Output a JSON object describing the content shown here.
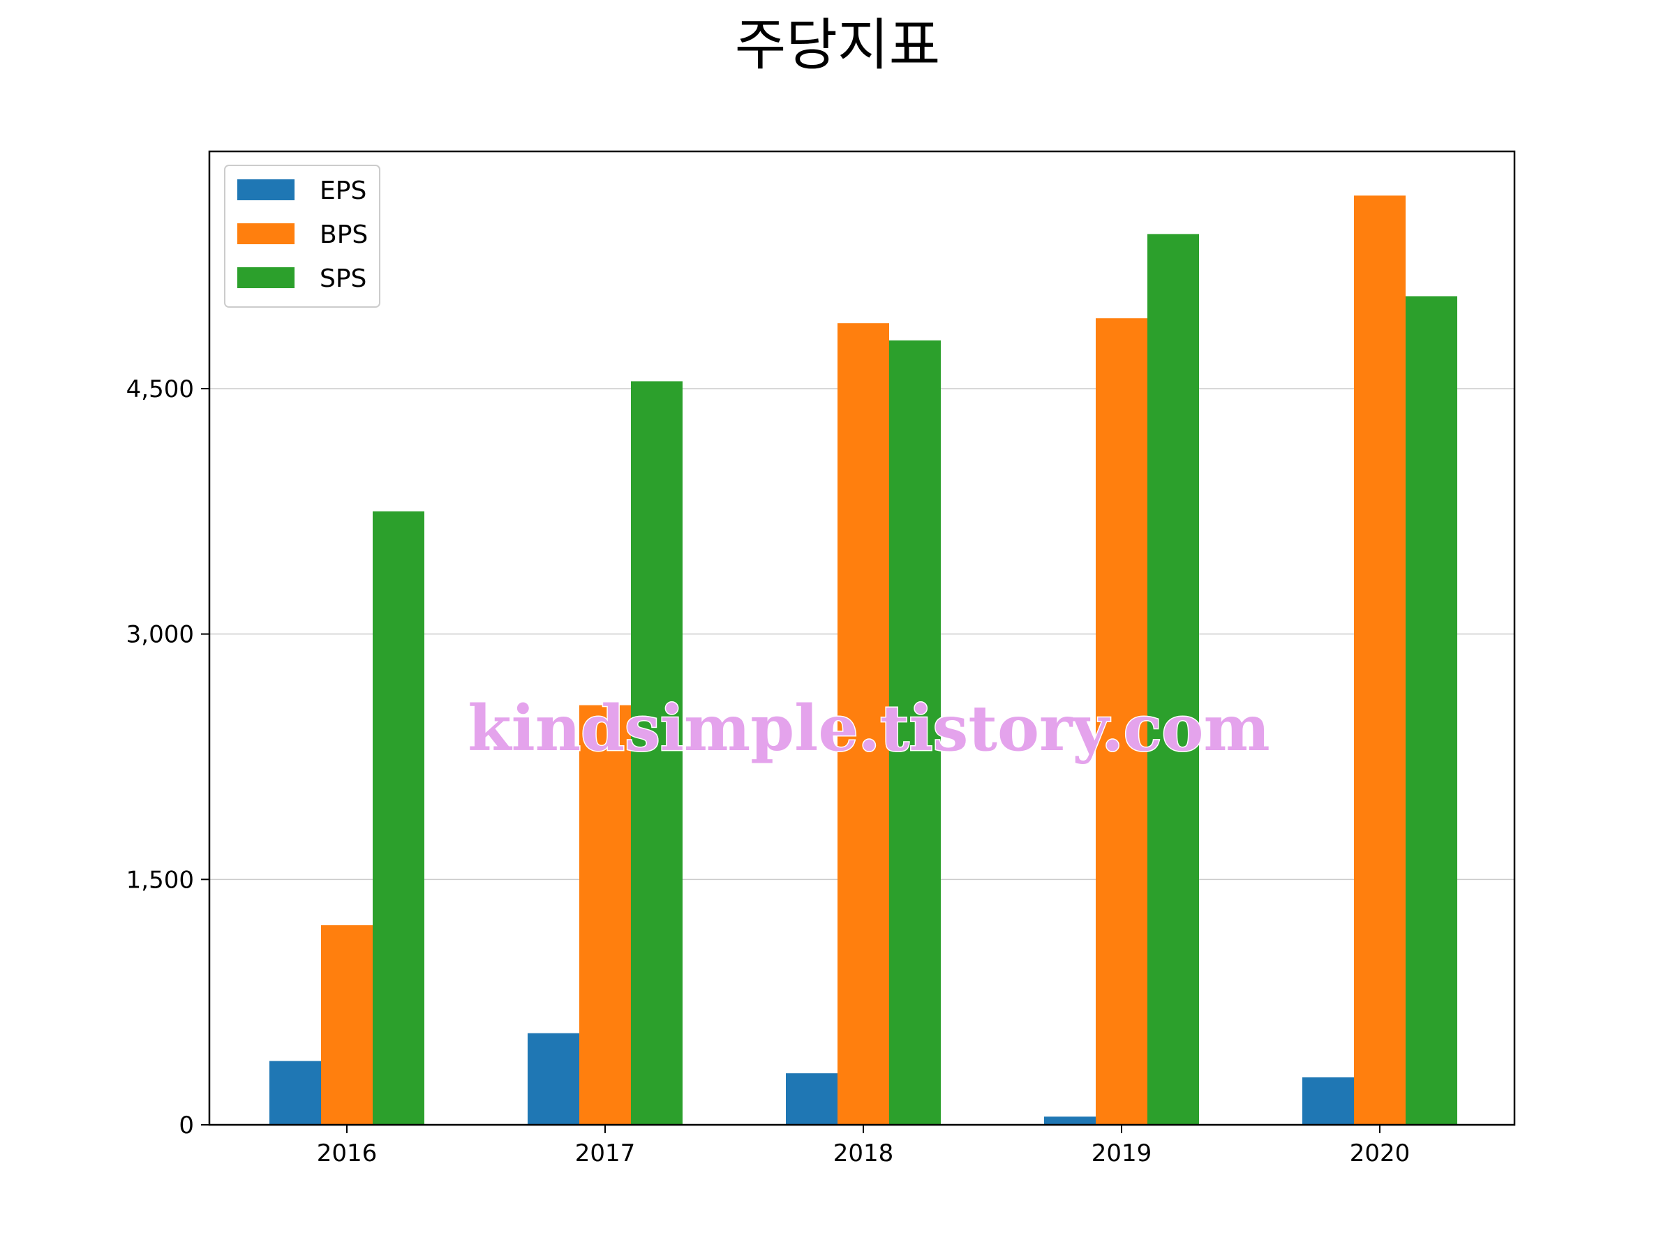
{
  "chart_data": {
    "type": "bar",
    "title": "주당지표",
    "xlabel": "",
    "ylabel": "",
    "categories": [
      "2016",
      "2017",
      "2018",
      "2019",
      "2020"
    ],
    "series": [
      {
        "name": "EPS",
        "color": "#1f77b4",
        "values": [
          390,
          560,
          315,
          50,
          290
        ]
      },
      {
        "name": "BPS",
        "color": "#ff7f0e",
        "values": [
          1220,
          2565,
          4900,
          4930,
          5680
        ]
      },
      {
        "name": "SPS",
        "color": "#2ca02c",
        "values": [
          3750,
          4545,
          4795,
          5445,
          5065
        ]
      }
    ],
    "ylim": [
      0,
      5950
    ],
    "yticks": [
      0,
      1500,
      3000,
      4500
    ],
    "ytick_labels": [
      "0",
      "1,500",
      "3,000",
      "4,500"
    ],
    "grid": "y",
    "legend_position": "upper-left"
  },
  "watermark": "kindsimple.tistory.com"
}
